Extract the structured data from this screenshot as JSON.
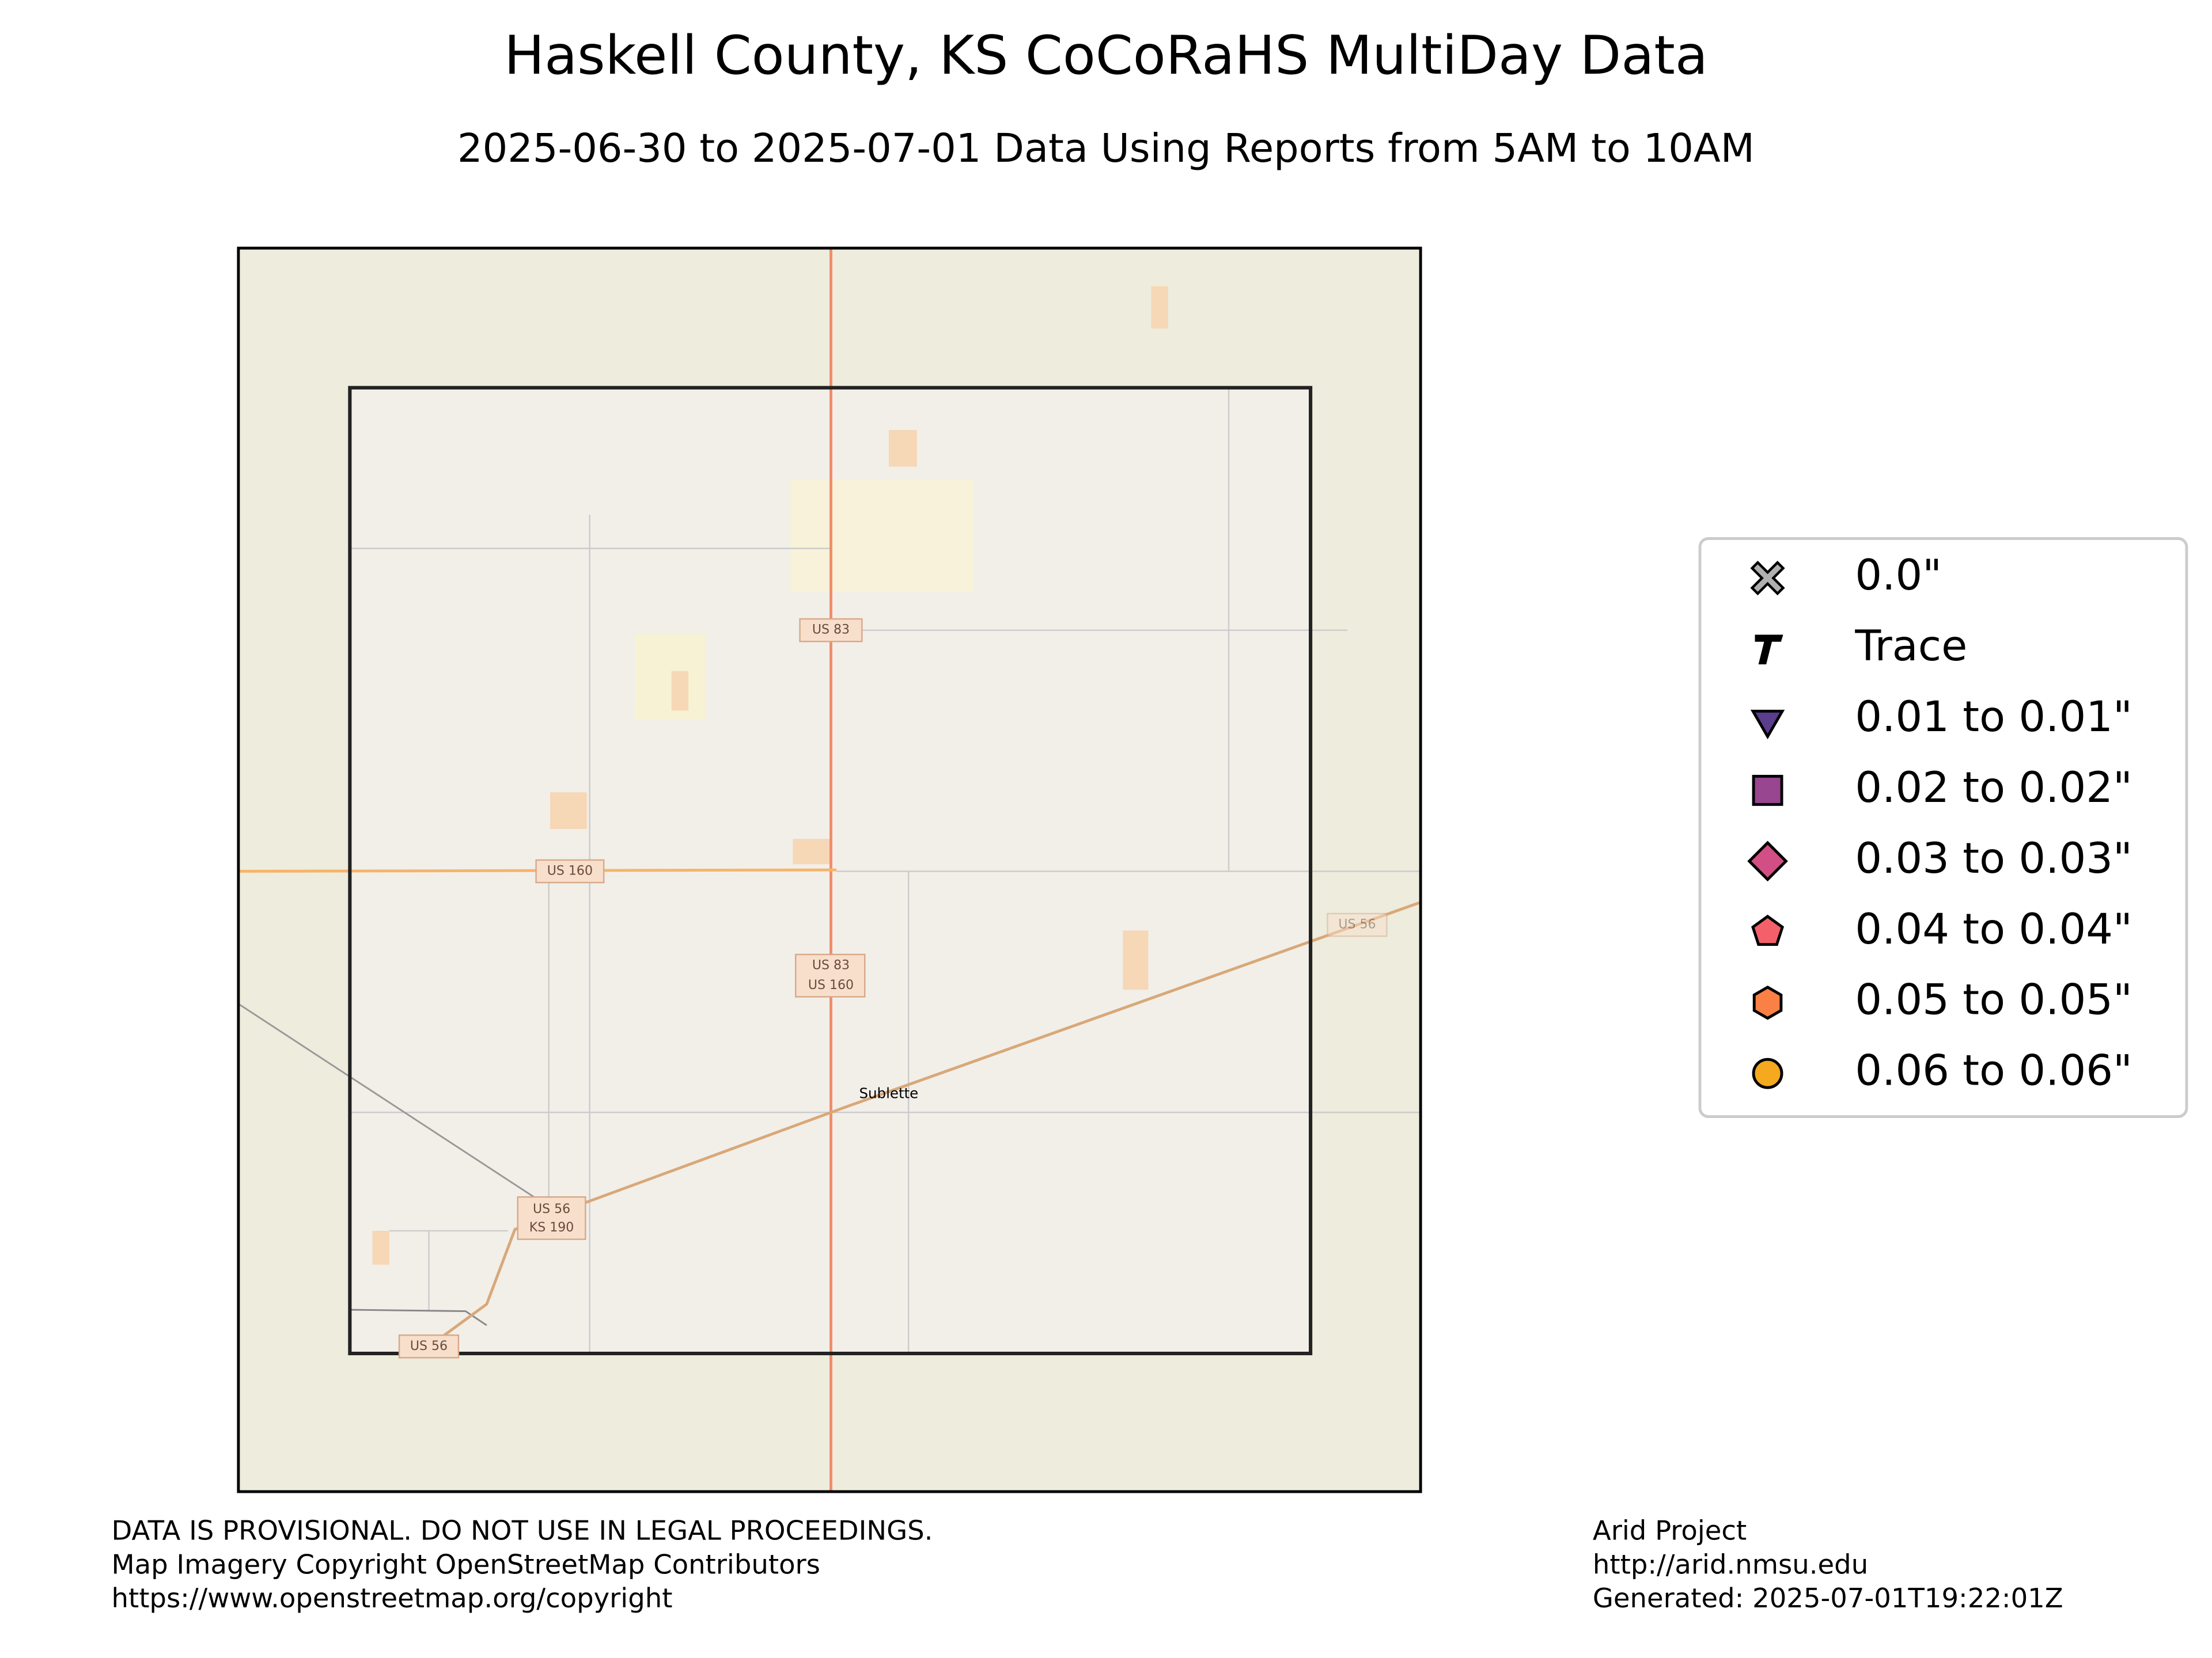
{
  "title": "Haskell County, KS CoCoRaHS MultiDay Data",
  "subtitle": "2025-06-30 to 2025-07-01 Data Using Reports from 5AM to 10AM",
  "map": {
    "shields": [
      {
        "lines": [
          "US 83"
        ]
      },
      {
        "lines": [
          "US 160"
        ]
      },
      {
        "lines": [
          "US 83",
          "US 160"
        ]
      },
      {
        "lines": [
          "US 56",
          "KS 190"
        ]
      },
      {
        "lines": [
          "US 56"
        ]
      },
      {
        "lines": [
          "US 56"
        ]
      }
    ],
    "places": [
      "Sublette"
    ]
  },
  "legend": {
    "items": [
      {
        "label": "0.0\"",
        "marker": "x",
        "color": "#b0b0b0"
      },
      {
        "label": "Trace",
        "marker": "T",
        "color": "#000000"
      },
      {
        "label": "0.01 to 0.01\"",
        "marker": "triangle",
        "color": "#5a3d8c"
      },
      {
        "label": "0.02 to 0.02\"",
        "marker": "square",
        "color": "#97468f"
      },
      {
        "label": "0.03 to 0.03\"",
        "marker": "diamond",
        "color": "#d14f85"
      },
      {
        "label": "0.04 to 0.04\"",
        "marker": "pentagon",
        "color": "#f4606a"
      },
      {
        "label": "0.05 to 0.05\"",
        "marker": "hexagon",
        "color": "#fb8045"
      },
      {
        "label": "0.06 to 0.06\"",
        "marker": "circle",
        "color": "#f5a91e"
      }
    ]
  },
  "footer": {
    "left": [
      "DATA IS PROVISIONAL. DO NOT USE IN LEGAL PROCEEDINGS.",
      "Map Imagery Copyright OpenStreetMap Contributors",
      "https://www.openstreetmap.org/copyright"
    ],
    "right": [
      "Arid Project",
      "http://arid.nmsu.edu",
      "Generated: 2025-07-01T19:22:01Z"
    ]
  }
}
